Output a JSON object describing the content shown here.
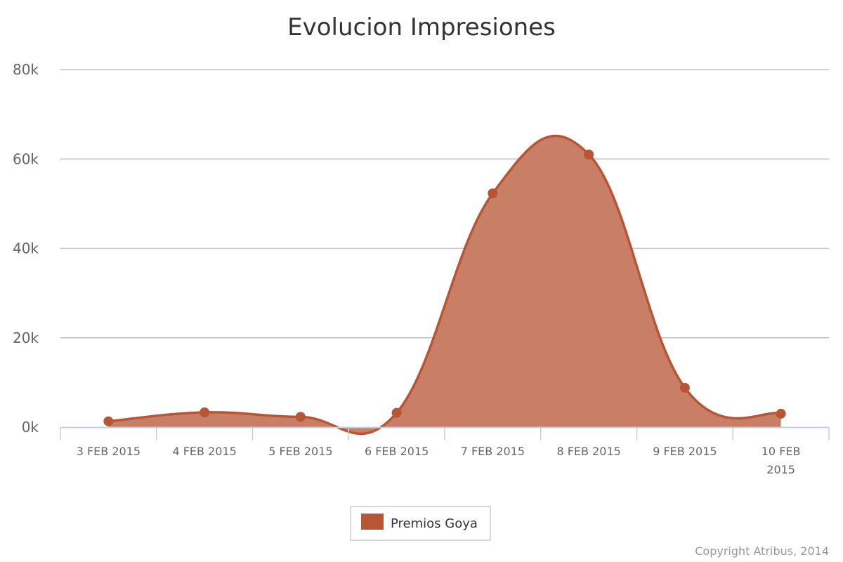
{
  "chart_data": {
    "type": "area",
    "title": "Evolucion Impresiones",
    "xlabel": "",
    "ylabel": "",
    "categories": [
      "3 FEB 2015",
      "4 FEB 2015",
      "5 FEB 2015",
      "6 FEB 2015",
      "7 FEB 2015",
      "8 FEB 2015",
      "9 FEB 2015",
      "10 FEB 2015"
    ],
    "series": [
      {
        "name": "Premios Goya",
        "values": [
          1300,
          3300,
          2300,
          3200,
          52300,
          61000,
          8800,
          3000
        ]
      }
    ],
    "ylim": [
      0,
      80000
    ],
    "y_ticks": [
      0,
      20000,
      40000,
      60000,
      80000
    ],
    "y_tick_labels": [
      "0k",
      "20k",
      "40k",
      "60k",
      "80k"
    ],
    "grid": true,
    "legend_position": "bottom-center",
    "smooth": true,
    "series_color": "#b85535",
    "fill_color": "#c97f66",
    "credit": "Copyright Atribus, 2014"
  }
}
